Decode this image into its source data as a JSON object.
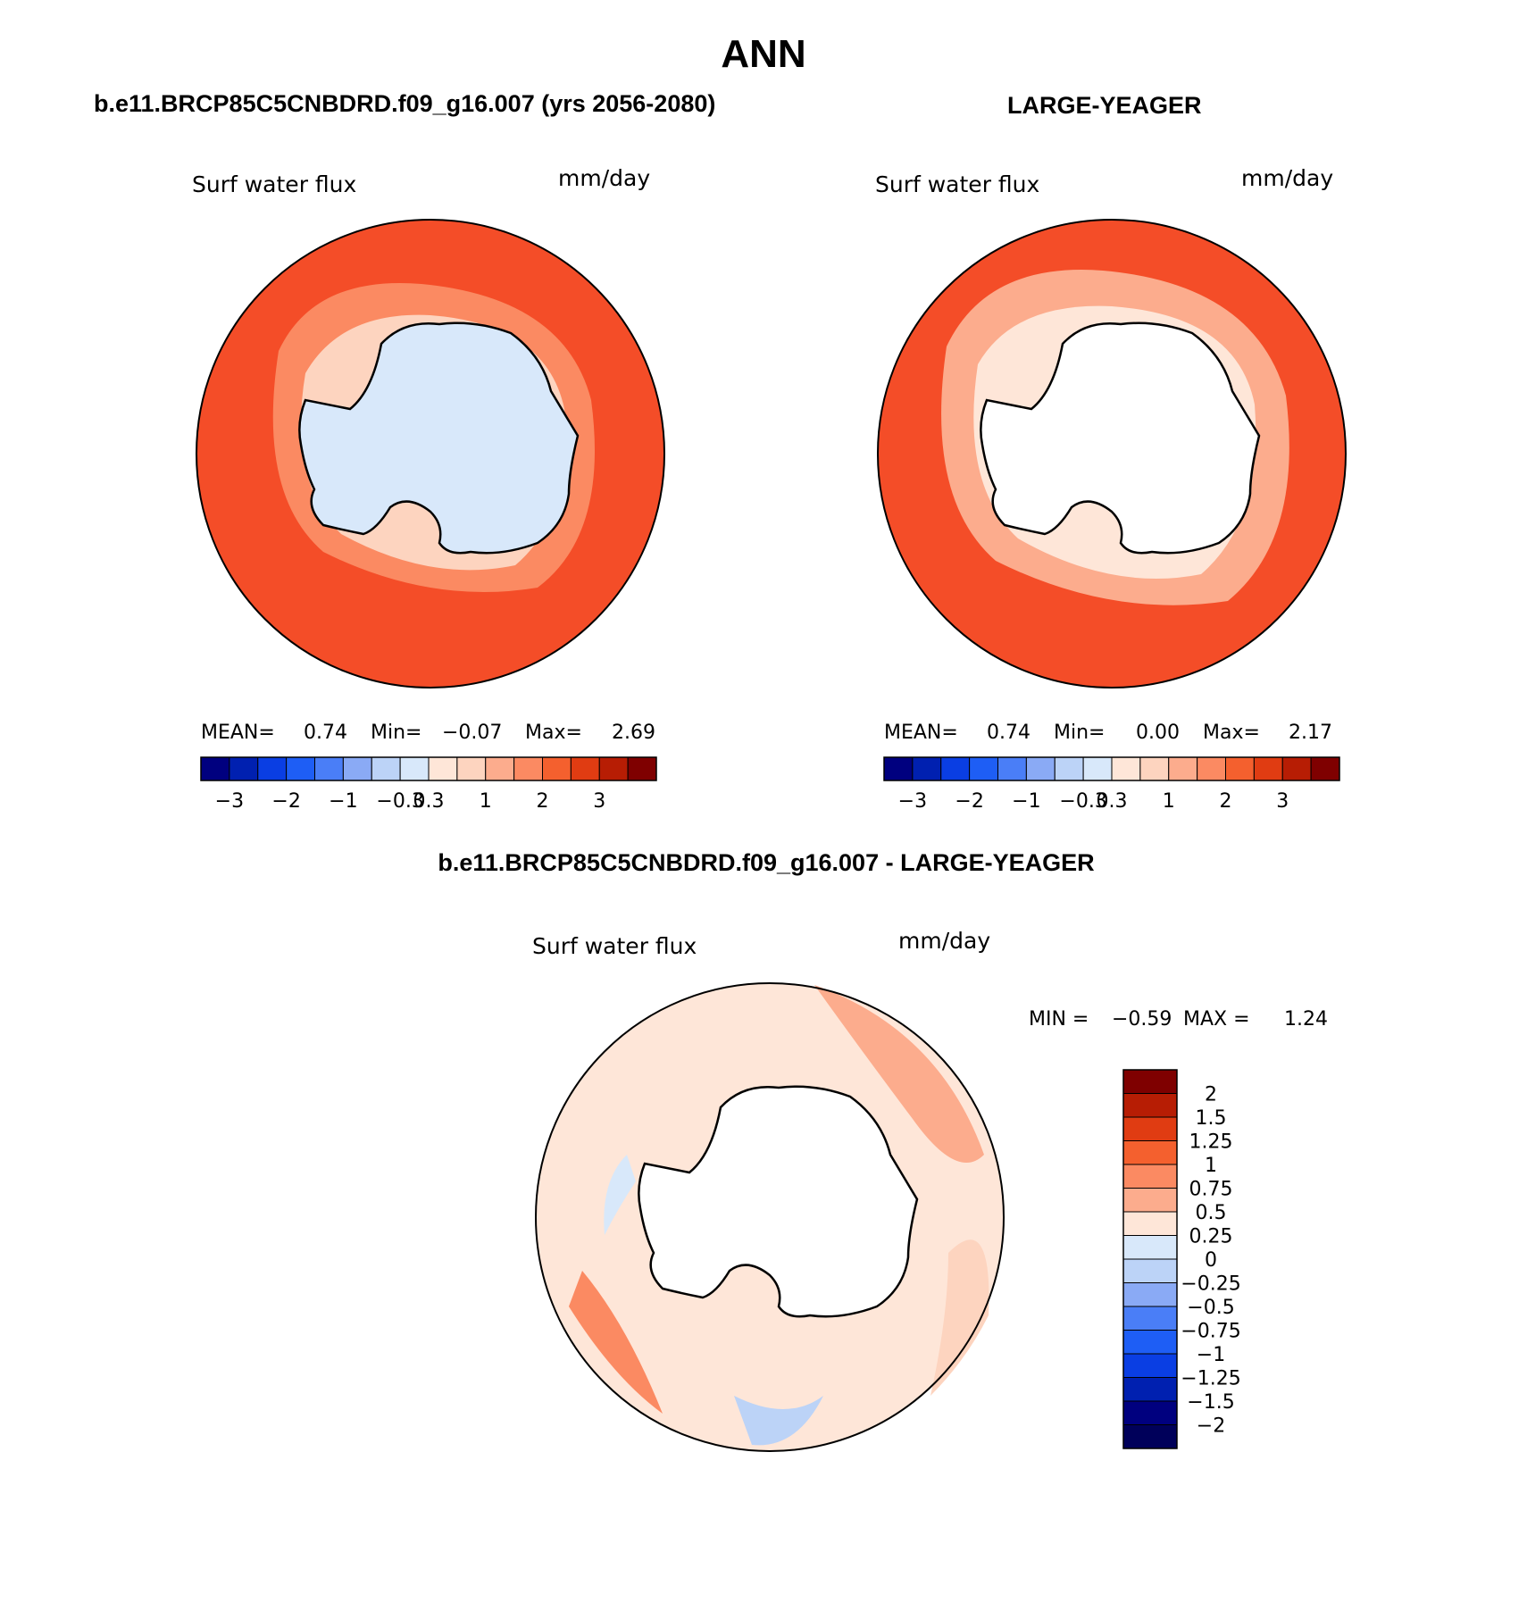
{
  "title": "ANN",
  "colors": {
    "outer": "#f44d28",
    "ring_top_left": "#fb8a62",
    "ring_top_right": "#fcac8d",
    "inner_top_left": "#fdd4bf",
    "inner_top_right": "#fee6d8",
    "continent_top_left": "#d8e8fa",
    "continent_white": "#ffffff",
    "diff_base": "#fee6d8",
    "diff_pos1": "#fdd4bf",
    "diff_pos2": "#fcac8d",
    "diff_pos3": "#fb8a62",
    "diff_neg": "#d8e8fa",
    "diff_neg2": "#bcd3f7"
  },
  "panels": [
    {
      "title": "b.e11.BRCP85C5CNBDRD.f09_g16.007 (yrs 2056-2080)",
      "field_label": "Surf water flux",
      "units": "mm/day",
      "stats": {
        "mean_label": "MEAN=",
        "mean": "0.74",
        "min_label": "Min=",
        "min": "−0.07",
        "max_label": "Max=",
        "max": "2.69"
      }
    },
    {
      "title": "LARGE-YEAGER",
      "field_label": "Surf water flux",
      "units": "mm/day",
      "stats": {
        "mean_label": "MEAN=",
        "mean": "0.74",
        "min_label": "Min=",
        "min": "0.00",
        "max_label": "Max=",
        "max": "2.17"
      }
    },
    {
      "title": "b.e11.BRCP85C5CNBDRD.f09_g16.007 - LARGE-YEAGER",
      "field_label": "Surf water flux",
      "units": "mm/day",
      "stats": {
        "min_label": "MIN =",
        "min": "−0.59",
        "max_label": "MAX =",
        "max": "1.24"
      }
    }
  ],
  "colorbar_top": {
    "colors": [
      "#00007f",
      "#0020b0",
      "#0a3ee3",
      "#1e5ef5",
      "#4a7ef7",
      "#8aaaf5",
      "#bcd3f7",
      "#d8e8fa",
      "#fee6d8",
      "#fdd4bf",
      "#fcac8d",
      "#fb8a62",
      "#f4602e",
      "#e03c12",
      "#b71d04",
      "#7f0000"
    ],
    "tick_labels": [
      "−3",
      "−2",
      "−1",
      "−0.3",
      "0.3",
      "1",
      "2",
      "3"
    ]
  },
  "colorbar_diff": {
    "colors": [
      "#7f0000",
      "#b71d04",
      "#e03c12",
      "#f4602e",
      "#fb8a62",
      "#fcac8d",
      "#fee6d8",
      "#d8e8fa",
      "#bcd3f7",
      "#8aaaf5",
      "#4a7ef7",
      "#1e5ef5",
      "#0a3ee3",
      "#0020b0",
      "#00007f",
      "#00005a"
    ],
    "tick_labels": [
      "2",
      "1.5",
      "1.25",
      "1",
      "0.75",
      "0.5",
      "0.25",
      "0",
      "−0.25",
      "−0.5",
      "−0.75",
      "−1",
      "−1.25",
      "−1.5",
      "−2"
    ]
  }
}
